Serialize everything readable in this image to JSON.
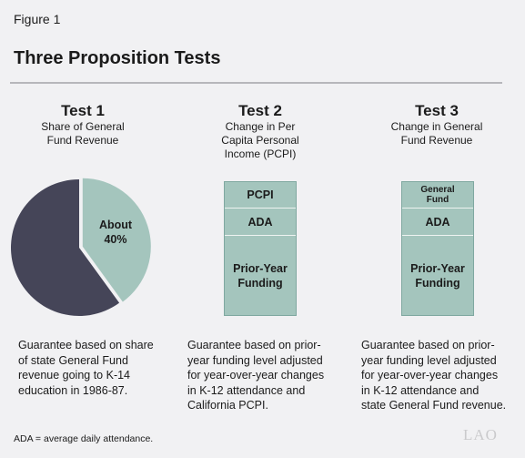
{
  "figure_label": "Figure 1",
  "title": "Three Proposition Tests",
  "tests": [
    {
      "heading": "Test 1",
      "subtitle": [
        "Share of General",
        "Fund Revenue"
      ],
      "pie": {
        "label_line1": "About",
        "label_line2": "40%",
        "share_percent": 40,
        "colors": {
          "share": "#a4c5bd",
          "rest": "#454558"
        }
      },
      "description": [
        "Guarantee based on share",
        "of state General Fund",
        "revenue going to K-14",
        "education in 1986-87."
      ]
    },
    {
      "heading": "Test 2",
      "subtitle": [
        "Change in Per",
        "Capita Personal",
        "Income (PCPI)"
      ],
      "segments": [
        "PCPI",
        "ADA",
        "Prior-Year\nFunding"
      ],
      "description": [
        "Guarantee based on prior-",
        "year funding level adjusted",
        "for year-over-year changes",
        "in K-12 attendance and",
        "California PCPI."
      ]
    },
    {
      "heading": "Test 3",
      "subtitle": [
        "Change in General",
        "Fund Revenue"
      ],
      "segments": [
        "General\nFund",
        "ADA",
        "Prior-Year\nFunding"
      ],
      "description": [
        "Guarantee based on prior-",
        "year funding level adjusted",
        "for year-over-year changes",
        "in K-12 attendance and",
        "state General Fund revenue."
      ]
    }
  ],
  "footnote": "ADA = average daily attendance.",
  "logo_text": "LAO"
}
